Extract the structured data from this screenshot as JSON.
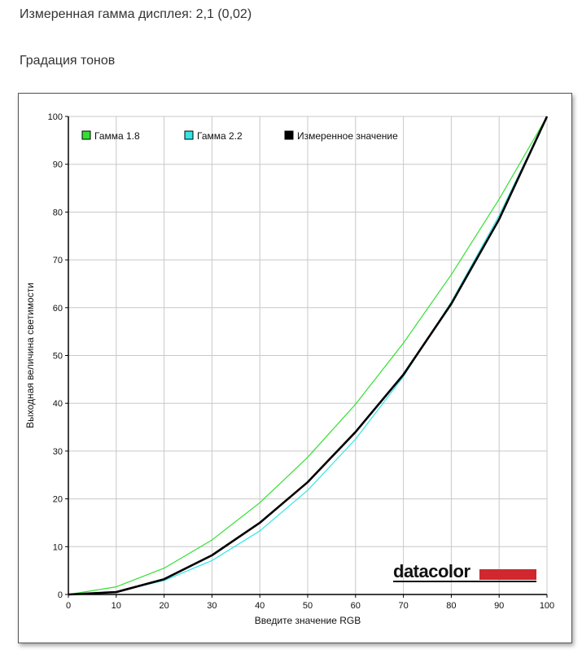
{
  "header": {
    "measured_gamma": "Измеренная гамма дисплея: 2,1 (0,02)",
    "section_title": "Градация тонов"
  },
  "colors": {
    "gamma18": "#33e033",
    "gamma22": "#33e5e5",
    "measured": "#000000",
    "grid": "#c8c8c8",
    "brand_red": "#d0282e"
  },
  "brand": {
    "logo": "datacolor"
  },
  "chart_data": {
    "type": "line",
    "title": "",
    "xlabel": "Введите значение RGB",
    "ylabel": "Выходная величина светимости",
    "xlim": [
      0,
      100
    ],
    "ylim": [
      0,
      100
    ],
    "x_ticks": [
      0,
      10,
      20,
      30,
      40,
      50,
      60,
      70,
      80,
      90,
      100
    ],
    "y_ticks": [
      0,
      10,
      20,
      30,
      40,
      50,
      60,
      70,
      80,
      90,
      100
    ],
    "grid": true,
    "legend_position": "top-left",
    "x": [
      0,
      10,
      20,
      30,
      40,
      50,
      60,
      70,
      80,
      90,
      100
    ],
    "series": [
      {
        "name": "Гамма 1.8",
        "color": "#33e033",
        "values": [
          0,
          1.6,
          5.5,
          11.4,
          19.2,
          28.7,
          39.8,
          52.6,
          66.9,
          82.7,
          100
        ]
      },
      {
        "name": "Гамма 2.2",
        "color": "#33e5e5",
        "values": [
          0,
          0.6,
          2.9,
          7.1,
          13.3,
          21.8,
          32.5,
          45.6,
          61.2,
          79.3,
          100
        ]
      },
      {
        "name": "Измеренное значение",
        "color": "#000000",
        "values": [
          0,
          0.5,
          3.2,
          8.2,
          15.0,
          23.5,
          34.0,
          46.0,
          60.8,
          78.5,
          100
        ]
      }
    ]
  }
}
